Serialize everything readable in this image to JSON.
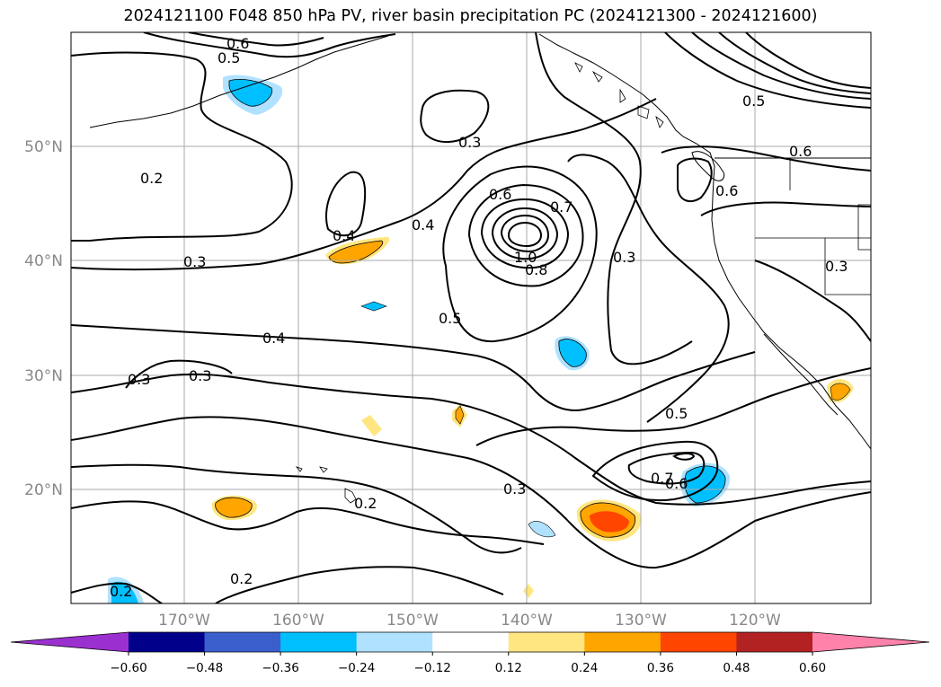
{
  "title": "2024121100 F048 850 hPa PV, river basin precipitation PC (2024121300 - 2024121600)",
  "map": {
    "lat_labels": [
      "50°N",
      "40°N",
      "30°N",
      "20°N"
    ],
    "lon_labels": [
      "170°W",
      "160°W",
      "150°W",
      "140°W",
      "130°W",
      "120°W"
    ],
    "contour_labels": [
      "0.6",
      "0.5",
      "0.2",
      "0.3",
      "0.4",
      "0.4",
      "0.6",
      "0.7",
      "1.0",
      "0.8",
      "0.3",
      "0.5",
      "0.4",
      "0.3",
      "0.3",
      "0.3",
      "0.2",
      "0.2",
      "0.2",
      "0.5",
      "0.3",
      "0.7",
      "0.6",
      "0.5",
      "0.6",
      "0.6",
      "0.3"
    ]
  },
  "colorbar": {
    "ticks": [
      "−0.60",
      "−0.48",
      "−0.36",
      "−0.24",
      "−0.12",
      "0.12",
      "0.24",
      "0.36",
      "0.48",
      "0.60"
    ],
    "colors": [
      "#9b30d0",
      "#00008b",
      "#3a5fcd",
      "#00bfff",
      "#b0e2ff",
      "#ffffff",
      "#ffe680",
      "#ffa500",
      "#ff4500",
      "#b22222",
      "#ff82ab"
    ]
  }
}
